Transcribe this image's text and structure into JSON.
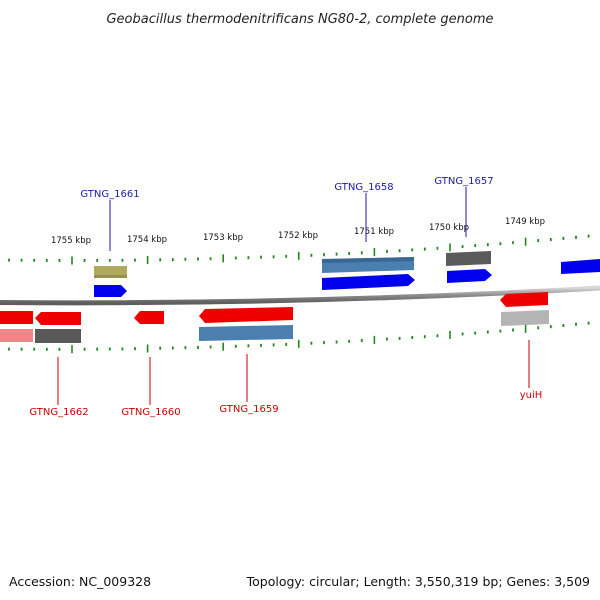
{
  "title": "Geobacillus thermodenitrificans NG80-2, complete genome",
  "footer": {
    "accession": "Accession: NC_009328",
    "summary": "Topology: circular; Length: 3,550,319 bp; Genes: 3,509"
  },
  "colors": {
    "forward_cds": "#0000ee",
    "reverse_cds": "#ee0000",
    "forward_label": "#1a1aaa",
    "reverse_label": "#cc0000",
    "backbone": "#888888",
    "ticks": "#228822",
    "feature_blue": "#4a7fb0",
    "feature_gray": "#5a5a5a",
    "feature_olive": "#b0aa60",
    "feature_pink": "#ee8888",
    "feature_lightgray": "#b4b4b4"
  },
  "kbp_ticks": [
    "1755 kbp",
    "1754 kbp",
    "1753 kbp",
    "1752 kbp",
    "1751 kbp",
    "1750 kbp",
    "1749 kbp"
  ],
  "forward_labels": [
    "GTNG_1661",
    "GTNG_1658",
    "GTNG_1657"
  ],
  "reverse_labels": [
    "GTNG_1662",
    "GTNG_1660",
    "GTNG_1659",
    "yuiH"
  ]
}
